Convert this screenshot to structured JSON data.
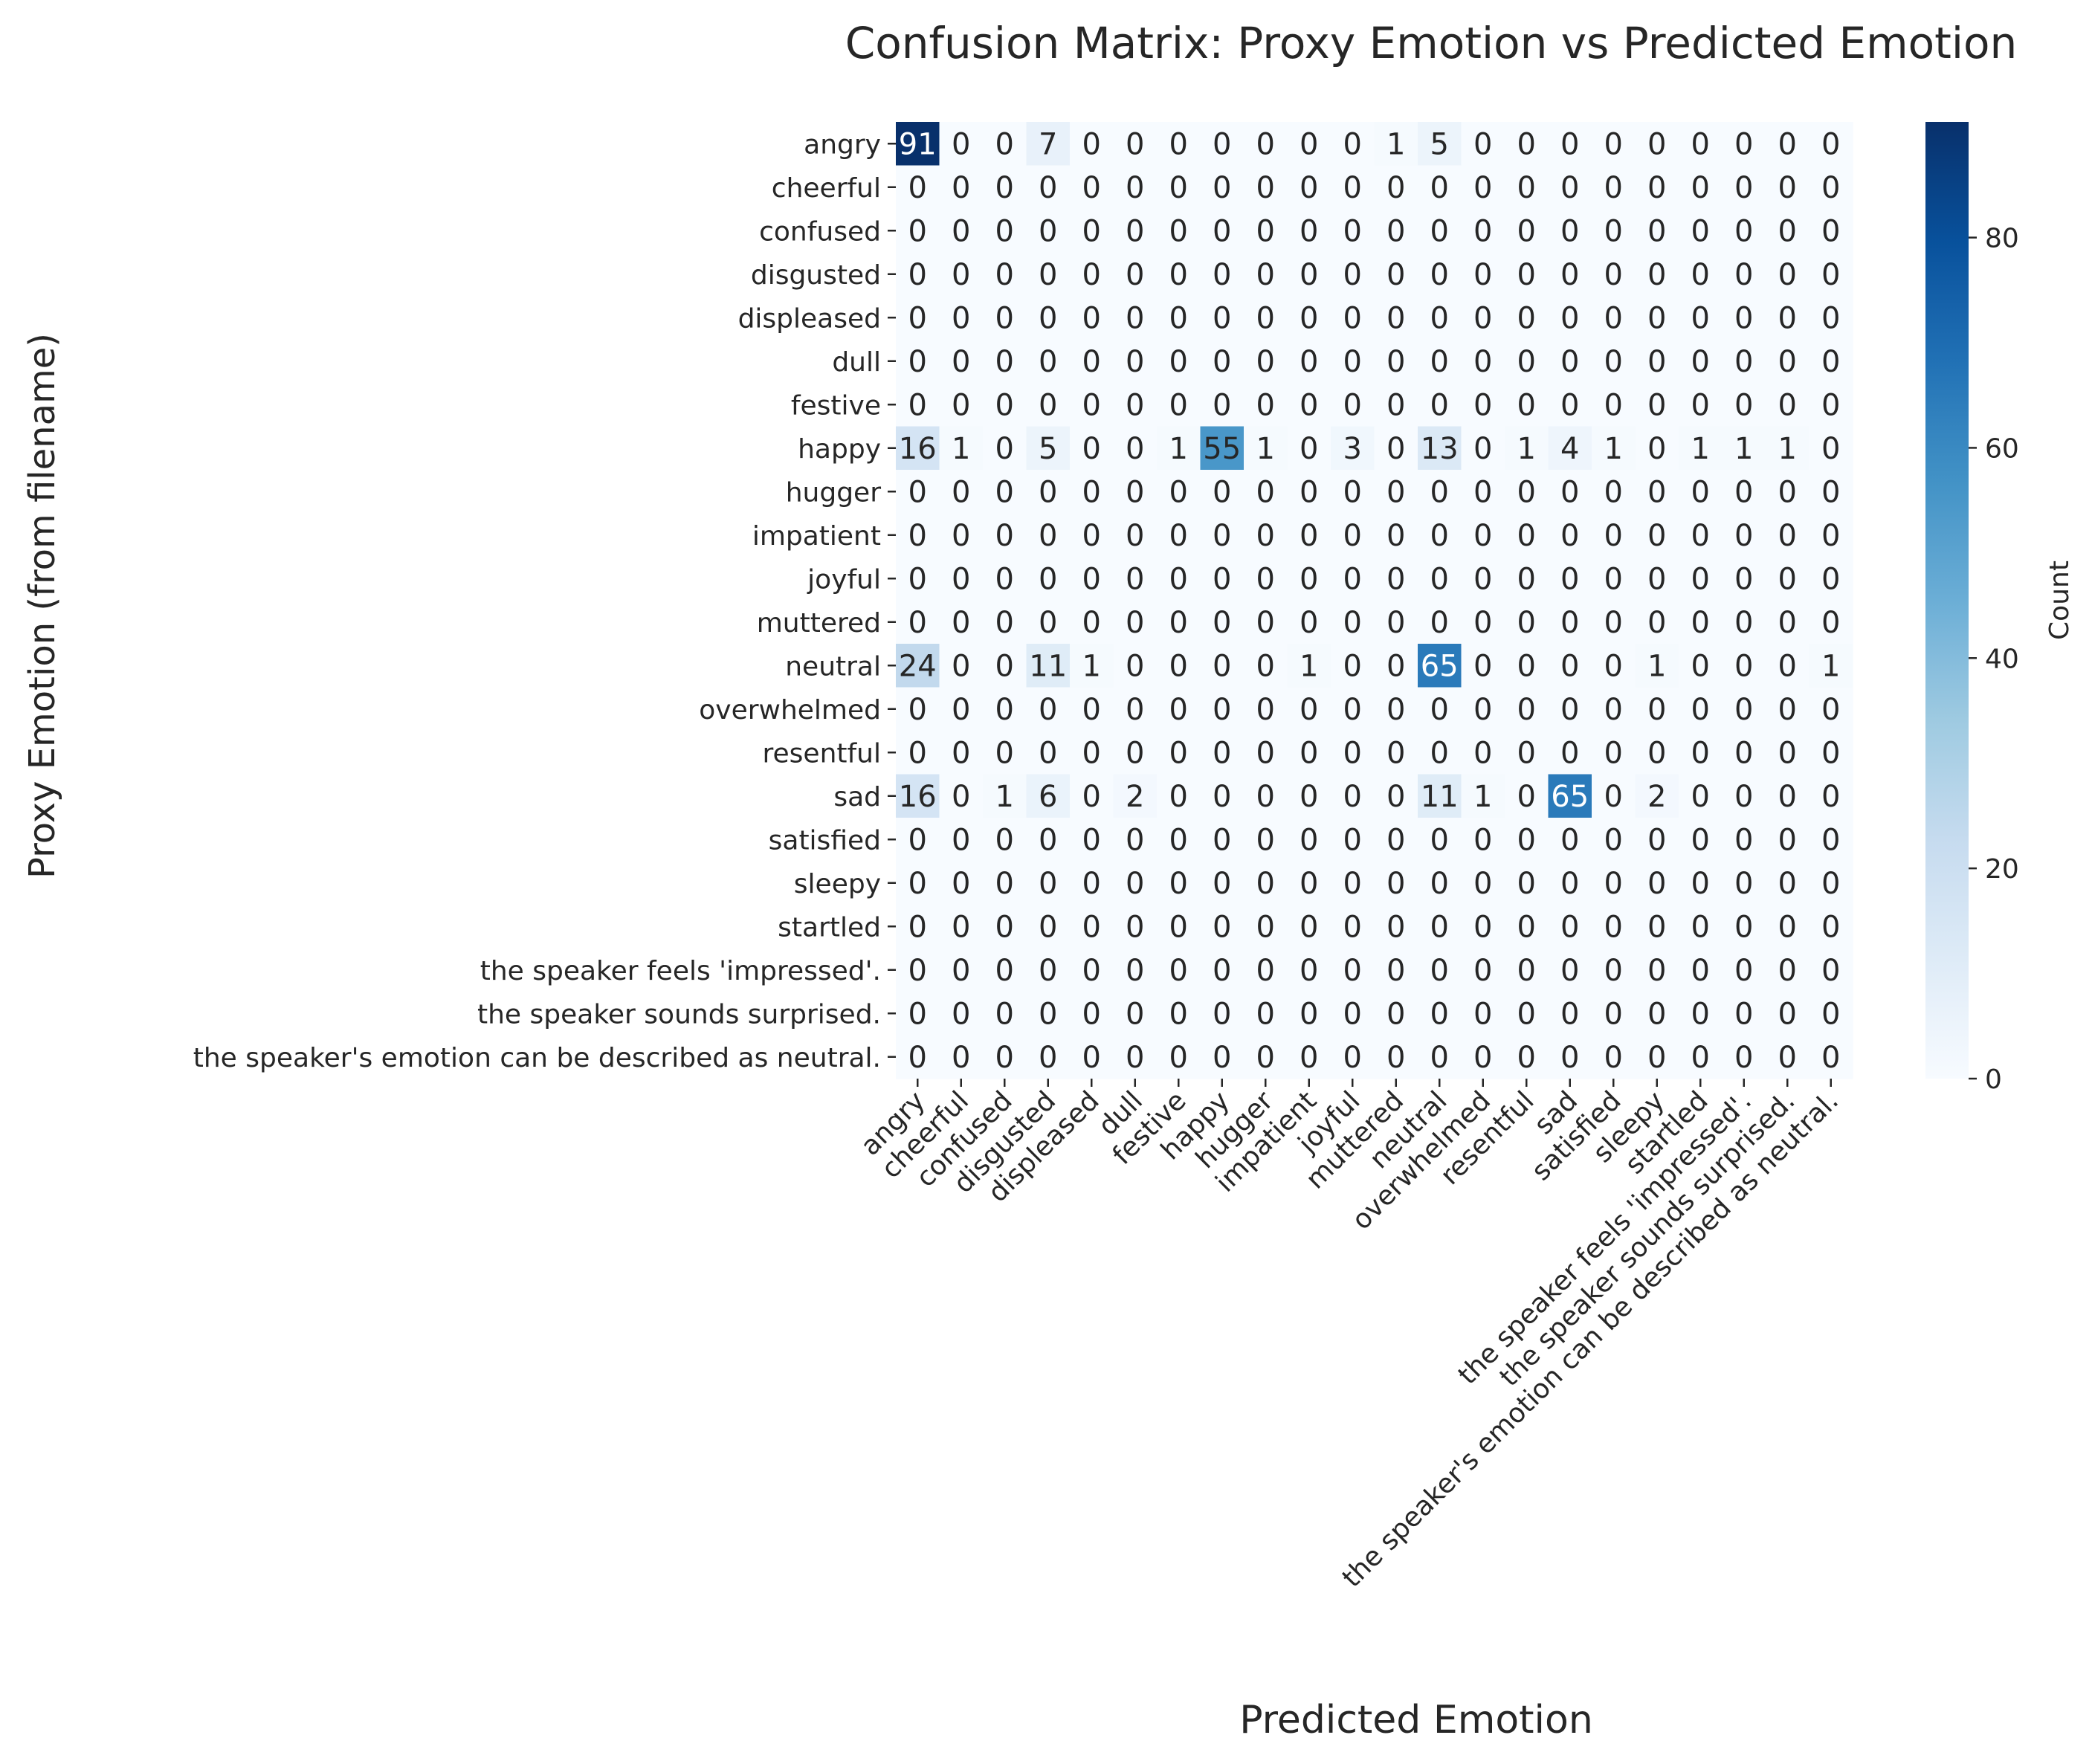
{
  "chart_data": {
    "type": "heatmap",
    "title": "Confusion Matrix: Proxy Emotion vs Predicted Emotion",
    "xlabel": "Predicted Emotion",
    "ylabel": "Proxy Emotion (from filename)",
    "colorbar_label": "Count",
    "colormap": "Blues",
    "color_low": "#f7fbff",
    "color_high": "#08306b",
    "vmin": 0,
    "vmax": 91,
    "colorbar_ticks": [
      0,
      20,
      40,
      60,
      80
    ],
    "rows": [
      "angry",
      "cheerful",
      "confused",
      "disgusted",
      "displeased",
      "dull",
      "festive",
      "happy",
      "hugger",
      "impatient",
      "joyful",
      "muttered",
      "neutral",
      "overwhelmed",
      "resentful",
      "sad",
      "satisfied",
      "sleepy",
      "startled",
      "the speaker feels 'impressed'.",
      "the speaker sounds surprised.",
      "the speaker's emotion can be described as neutral."
    ],
    "columns": [
      "angry",
      "cheerful",
      "confused",
      "disgusted",
      "displeased",
      "dull",
      "festive",
      "happy",
      "hugger",
      "impatient",
      "joyful",
      "muttered",
      "neutral",
      "overwhelmed",
      "resentful",
      "sad",
      "satisfied",
      "sleepy",
      "startled",
      "the speaker feels 'impressed'.",
      "the speaker sounds surprised.",
      "the speaker's emotion can be described as neutral."
    ],
    "values": [
      [
        91,
        0,
        0,
        7,
        0,
        0,
        0,
        0,
        0,
        0,
        0,
        1,
        5,
        0,
        0,
        0,
        0,
        0,
        0,
        0,
        0,
        0
      ],
      [
        0,
        0,
        0,
        0,
        0,
        0,
        0,
        0,
        0,
        0,
        0,
        0,
        0,
        0,
        0,
        0,
        0,
        0,
        0,
        0,
        0,
        0
      ],
      [
        0,
        0,
        0,
        0,
        0,
        0,
        0,
        0,
        0,
        0,
        0,
        0,
        0,
        0,
        0,
        0,
        0,
        0,
        0,
        0,
        0,
        0
      ],
      [
        0,
        0,
        0,
        0,
        0,
        0,
        0,
        0,
        0,
        0,
        0,
        0,
        0,
        0,
        0,
        0,
        0,
        0,
        0,
        0,
        0,
        0
      ],
      [
        0,
        0,
        0,
        0,
        0,
        0,
        0,
        0,
        0,
        0,
        0,
        0,
        0,
        0,
        0,
        0,
        0,
        0,
        0,
        0,
        0,
        0
      ],
      [
        0,
        0,
        0,
        0,
        0,
        0,
        0,
        0,
        0,
        0,
        0,
        0,
        0,
        0,
        0,
        0,
        0,
        0,
        0,
        0,
        0,
        0
      ],
      [
        0,
        0,
        0,
        0,
        0,
        0,
        0,
        0,
        0,
        0,
        0,
        0,
        0,
        0,
        0,
        0,
        0,
        0,
        0,
        0,
        0,
        0
      ],
      [
        16,
        1,
        0,
        5,
        0,
        0,
        1,
        55,
        1,
        0,
        3,
        0,
        13,
        0,
        1,
        4,
        1,
        0,
        1,
        1,
        1,
        0
      ],
      [
        0,
        0,
        0,
        0,
        0,
        0,
        0,
        0,
        0,
        0,
        0,
        0,
        0,
        0,
        0,
        0,
        0,
        0,
        0,
        0,
        0,
        0
      ],
      [
        0,
        0,
        0,
        0,
        0,
        0,
        0,
        0,
        0,
        0,
        0,
        0,
        0,
        0,
        0,
        0,
        0,
        0,
        0,
        0,
        0,
        0
      ],
      [
        0,
        0,
        0,
        0,
        0,
        0,
        0,
        0,
        0,
        0,
        0,
        0,
        0,
        0,
        0,
        0,
        0,
        0,
        0,
        0,
        0,
        0
      ],
      [
        0,
        0,
        0,
        0,
        0,
        0,
        0,
        0,
        0,
        0,
        0,
        0,
        0,
        0,
        0,
        0,
        0,
        0,
        0,
        0,
        0,
        0
      ],
      [
        24,
        0,
        0,
        11,
        1,
        0,
        0,
        0,
        0,
        1,
        0,
        0,
        65,
        0,
        0,
        0,
        0,
        1,
        0,
        0,
        0,
        1
      ],
      [
        0,
        0,
        0,
        0,
        0,
        0,
        0,
        0,
        0,
        0,
        0,
        0,
        0,
        0,
        0,
        0,
        0,
        0,
        0,
        0,
        0,
        0
      ],
      [
        0,
        0,
        0,
        0,
        0,
        0,
        0,
        0,
        0,
        0,
        0,
        0,
        0,
        0,
        0,
        0,
        0,
        0,
        0,
        0,
        0,
        0
      ],
      [
        16,
        0,
        1,
        6,
        0,
        2,
        0,
        0,
        0,
        0,
        0,
        0,
        11,
        1,
        0,
        65,
        0,
        2,
        0,
        0,
        0,
        0
      ],
      [
        0,
        0,
        0,
        0,
        0,
        0,
        0,
        0,
        0,
        0,
        0,
        0,
        0,
        0,
        0,
        0,
        0,
        0,
        0,
        0,
        0,
        0
      ],
      [
        0,
        0,
        0,
        0,
        0,
        0,
        0,
        0,
        0,
        0,
        0,
        0,
        0,
        0,
        0,
        0,
        0,
        0,
        0,
        0,
        0,
        0
      ],
      [
        0,
        0,
        0,
        0,
        0,
        0,
        0,
        0,
        0,
        0,
        0,
        0,
        0,
        0,
        0,
        0,
        0,
        0,
        0,
        0,
        0,
        0
      ],
      [
        0,
        0,
        0,
        0,
        0,
        0,
        0,
        0,
        0,
        0,
        0,
        0,
        0,
        0,
        0,
        0,
        0,
        0,
        0,
        0,
        0,
        0
      ],
      [
        0,
        0,
        0,
        0,
        0,
        0,
        0,
        0,
        0,
        0,
        0,
        0,
        0,
        0,
        0,
        0,
        0,
        0,
        0,
        0,
        0,
        0
      ],
      [
        0,
        0,
        0,
        0,
        0,
        0,
        0,
        0,
        0,
        0,
        0,
        0,
        0,
        0,
        0,
        0,
        0,
        0,
        0,
        0,
        0,
        0
      ]
    ]
  }
}
